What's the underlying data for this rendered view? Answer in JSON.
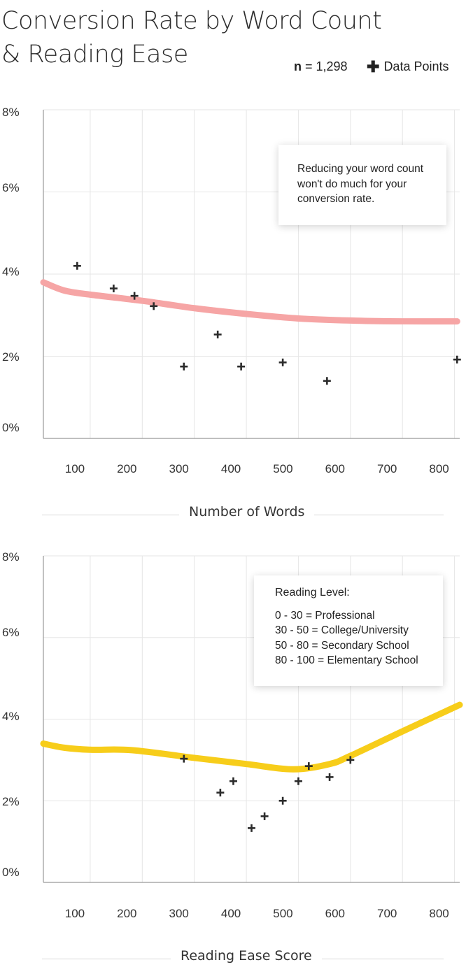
{
  "title": "Conversion Rate by Word Count & Reading Ease",
  "n_label_bold": "n",
  "n_label_rest": " = 1,298",
  "legend": {
    "symbol": "✚",
    "label": "Data Points"
  },
  "colors": {
    "line1": "#f6a5a5",
    "line2": "#f7cd1a",
    "grid": "#e6e6e6",
    "axis": "#999999",
    "point": "#2b2b2b"
  },
  "chart_data": [
    {
      "type": "scatter",
      "xlabel": "Number of Words",
      "ylabel": "",
      "xticks": [
        "100",
        "200",
        "300",
        "400",
        "500",
        "600",
        "700",
        "800"
      ],
      "yticks": [
        "0%",
        "2%",
        "4%",
        "6%",
        "8%"
      ],
      "xlim": [
        10,
        810
      ],
      "ylim": [
        0,
        8
      ],
      "grid": true,
      "points": [
        {
          "x": 75,
          "y": 4.2
        },
        {
          "x": 145,
          "y": 3.65
        },
        {
          "x": 185,
          "y": 3.47
        },
        {
          "x": 222,
          "y": 3.22
        },
        {
          "x": 280,
          "y": 1.75
        },
        {
          "x": 345,
          "y": 2.53
        },
        {
          "x": 390,
          "y": 1.75
        },
        {
          "x": 470,
          "y": 1.85
        },
        {
          "x": 555,
          "y": 1.4
        },
        {
          "x": 805,
          "y": 1.92
        }
      ],
      "trend": [
        {
          "x": 10,
          "y": 3.8
        },
        {
          "x": 50,
          "y": 3.6
        },
        {
          "x": 100,
          "y": 3.5
        },
        {
          "x": 200,
          "y": 3.35
        },
        {
          "x": 300,
          "y": 3.17
        },
        {
          "x": 400,
          "y": 3.03
        },
        {
          "x": 500,
          "y": 2.92
        },
        {
          "x": 600,
          "y": 2.87
        },
        {
          "x": 700,
          "y": 2.85
        },
        {
          "x": 805,
          "y": 2.85
        }
      ],
      "annotation": "Reducing your word count won't do much for your conversion rate."
    },
    {
      "type": "scatter",
      "xlabel": "Reading Ease Score",
      "ylabel": "",
      "xticks": [
        "100",
        "200",
        "300",
        "400",
        "500",
        "600",
        "700",
        "800"
      ],
      "yticks": [
        "0%",
        "2%",
        "4%",
        "6%",
        "8%"
      ],
      "xlim": [
        10,
        810
      ],
      "ylim": [
        0,
        8
      ],
      "grid": true,
      "points": [
        {
          "x": 280,
          "y": 3.03
        },
        {
          "x": 350,
          "y": 2.2
        },
        {
          "x": 375,
          "y": 2.48
        },
        {
          "x": 410,
          "y": 1.33
        },
        {
          "x": 435,
          "y": 1.62
        },
        {
          "x": 470,
          "y": 2.0
        },
        {
          "x": 500,
          "y": 2.48
        },
        {
          "x": 520,
          "y": 2.85
        },
        {
          "x": 560,
          "y": 2.58
        },
        {
          "x": 600,
          "y": 3.0
        }
      ],
      "trend": [
        {
          "x": 10,
          "y": 3.4
        },
        {
          "x": 50,
          "y": 3.3
        },
        {
          "x": 100,
          "y": 3.25
        },
        {
          "x": 180,
          "y": 3.24
        },
        {
          "x": 300,
          "y": 3.05
        },
        {
          "x": 400,
          "y": 2.9
        },
        {
          "x": 490,
          "y": 2.77
        },
        {
          "x": 560,
          "y": 2.9
        },
        {
          "x": 600,
          "y": 3.1
        },
        {
          "x": 700,
          "y": 3.7
        },
        {
          "x": 810,
          "y": 4.35
        }
      ],
      "annotation_title": "Reading Level:",
      "annotation_lines": [
        "0 - 30 = Professional",
        "30 - 50 = College/University",
        "50 - 80 = Secondary School",
        "80 - 100 = Elementary School"
      ]
    }
  ]
}
